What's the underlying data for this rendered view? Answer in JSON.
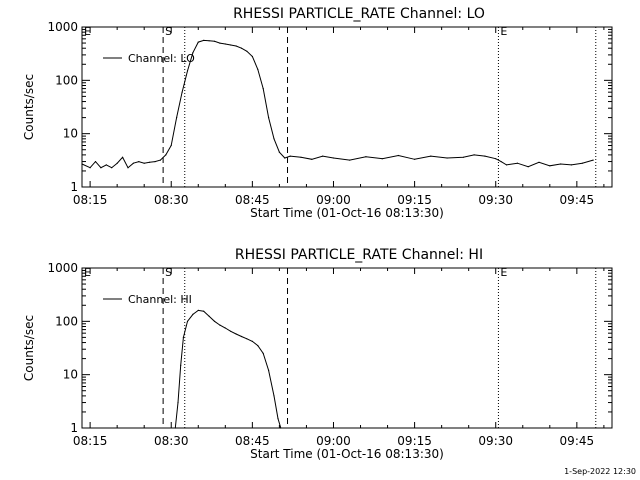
{
  "chart_data": [
    {
      "type": "line",
      "title": "RHESSI PARTICLE_RATE Channel: LO",
      "xlabel": "Start Time (01-Oct-16 08:13:30)",
      "ylabel": "Counts/sec",
      "yscale": "log",
      "xlim": [
        "08:13:30",
        "09:51:30"
      ],
      "ylim": [
        1,
        1000
      ],
      "x_ticks": [
        "08:15",
        "08:30",
        "08:45",
        "09:00",
        "09:15",
        "09:30",
        "09:45"
      ],
      "y_ticks": [
        "1",
        "10",
        "100",
        "1000"
      ],
      "legend": "Channel: LO",
      "legend_position": "top-left",
      "grid": false,
      "markers": [
        {
          "label": "E",
          "time": "08:13:30",
          "style": "dotted"
        },
        {
          "label": "",
          "time": "08:28:30",
          "style": "dashed"
        },
        {
          "label": "S",
          "time": "08:28:30",
          "style": "none"
        },
        {
          "label": "",
          "time": "08:32:30",
          "style": "dotted"
        },
        {
          "label": "",
          "time": "08:51:30",
          "style": "dashed"
        },
        {
          "label": "E",
          "time": "09:30:30",
          "style": "dotted"
        },
        {
          "label": "",
          "time": "09:48:30",
          "style": "dotted"
        }
      ],
      "series": [
        {
          "name": "Channel: LO",
          "x": [
            "08:13:30",
            "08:15:00",
            "08:16:00",
            "08:17:00",
            "08:18:00",
            "08:19:00",
            "08:20:00",
            "08:21:00",
            "08:22:00",
            "08:23:00",
            "08:24:00",
            "08:25:00",
            "08:26:00",
            "08:27:00",
            "08:28:00",
            "08:29:00",
            "08:30:00",
            "08:31:00",
            "08:32:00",
            "08:33:00",
            "08:34:00",
            "08:35:00",
            "08:36:00",
            "08:37:00",
            "08:38:00",
            "08:39:00",
            "08:40:00",
            "08:41:00",
            "08:42:00",
            "08:43:00",
            "08:44:00",
            "08:45:00",
            "08:46:00",
            "08:47:00",
            "08:48:00",
            "08:49:00",
            "08:50:00",
            "08:51:00",
            "08:52:00",
            "08:54:00",
            "08:56:00",
            "08:58:00",
            "09:00:00",
            "09:03:00",
            "09:06:00",
            "09:09:00",
            "09:12:00",
            "09:15:00",
            "09:18:00",
            "09:21:00",
            "09:24:00",
            "09:26:00",
            "09:28:00",
            "09:30:00",
            "09:31:00",
            "09:32:00",
            "09:34:00",
            "09:36:00",
            "09:38:00",
            "09:40:00",
            "09:42:00",
            "09:44:00",
            "09:46:00",
            "09:48:00"
          ],
          "y": [
            2.7,
            2.3,
            3.0,
            2.3,
            2.6,
            2.3,
            2.8,
            3.6,
            2.3,
            2.8,
            3.0,
            2.8,
            2.9,
            3.0,
            3.2,
            4.0,
            6.0,
            20,
            60,
            150,
            330,
            520,
            560,
            550,
            540,
            500,
            480,
            460,
            440,
            400,
            350,
            280,
            160,
            70,
            20,
            8,
            4.5,
            3.5,
            3.8,
            3.6,
            3.3,
            3.8,
            3.5,
            3.2,
            3.7,
            3.4,
            3.9,
            3.3,
            3.8,
            3.5,
            3.6,
            4.0,
            3.8,
            3.4,
            3.0,
            2.6,
            2.8,
            2.4,
            2.9,
            2.5,
            2.7,
            2.6,
            2.8,
            3.2
          ]
        }
      ]
    },
    {
      "type": "line",
      "title": "RHESSI PARTICLE_RATE Channel: HI",
      "xlabel": "Start Time (01-Oct-16 08:13:30)",
      "ylabel": "Counts/sec",
      "yscale": "log",
      "xlim": [
        "08:13:30",
        "09:51:30"
      ],
      "ylim": [
        1,
        1000
      ],
      "x_ticks": [
        "08:15",
        "08:30",
        "08:45",
        "09:00",
        "09:15",
        "09:30",
        "09:45"
      ],
      "y_ticks": [
        "1",
        "10",
        "100",
        "1000"
      ],
      "legend": "Channel: HI",
      "legend_position": "top-left",
      "grid": false,
      "markers": [
        {
          "label": "E",
          "time": "08:13:30",
          "style": "dotted"
        },
        {
          "label": "",
          "time": "08:28:30",
          "style": "dashed"
        },
        {
          "label": "S",
          "time": "08:28:30",
          "style": "none"
        },
        {
          "label": "",
          "time": "08:32:30",
          "style": "dotted"
        },
        {
          "label": "",
          "time": "08:51:30",
          "style": "dashed"
        },
        {
          "label": "E",
          "time": "09:30:30",
          "style": "dotted"
        },
        {
          "label": "",
          "time": "09:48:30",
          "style": "dotted"
        }
      ],
      "series": [
        {
          "name": "Channel: HI",
          "x": [
            "08:30:45",
            "08:31:15",
            "08:31:45",
            "08:32:15",
            "08:33:00",
            "08:34:00",
            "08:35:00",
            "08:36:00",
            "08:37:00",
            "08:38:00",
            "08:39:00",
            "08:40:00",
            "08:41:00",
            "08:42:00",
            "08:43:00",
            "08:44:00",
            "08:45:00",
            "08:46:00",
            "08:47:00",
            "08:48:00",
            "08:49:00",
            "08:49:45",
            "08:50:15"
          ],
          "y": [
            1,
            3,
            15,
            50,
            100,
            135,
            160,
            155,
            125,
            100,
            85,
            75,
            65,
            58,
            52,
            47,
            42,
            35,
            25,
            12,
            4,
            1.5,
            1
          ]
        }
      ]
    }
  ],
  "footer": {
    "timestamp": "1-Sep-2022 12:30"
  }
}
